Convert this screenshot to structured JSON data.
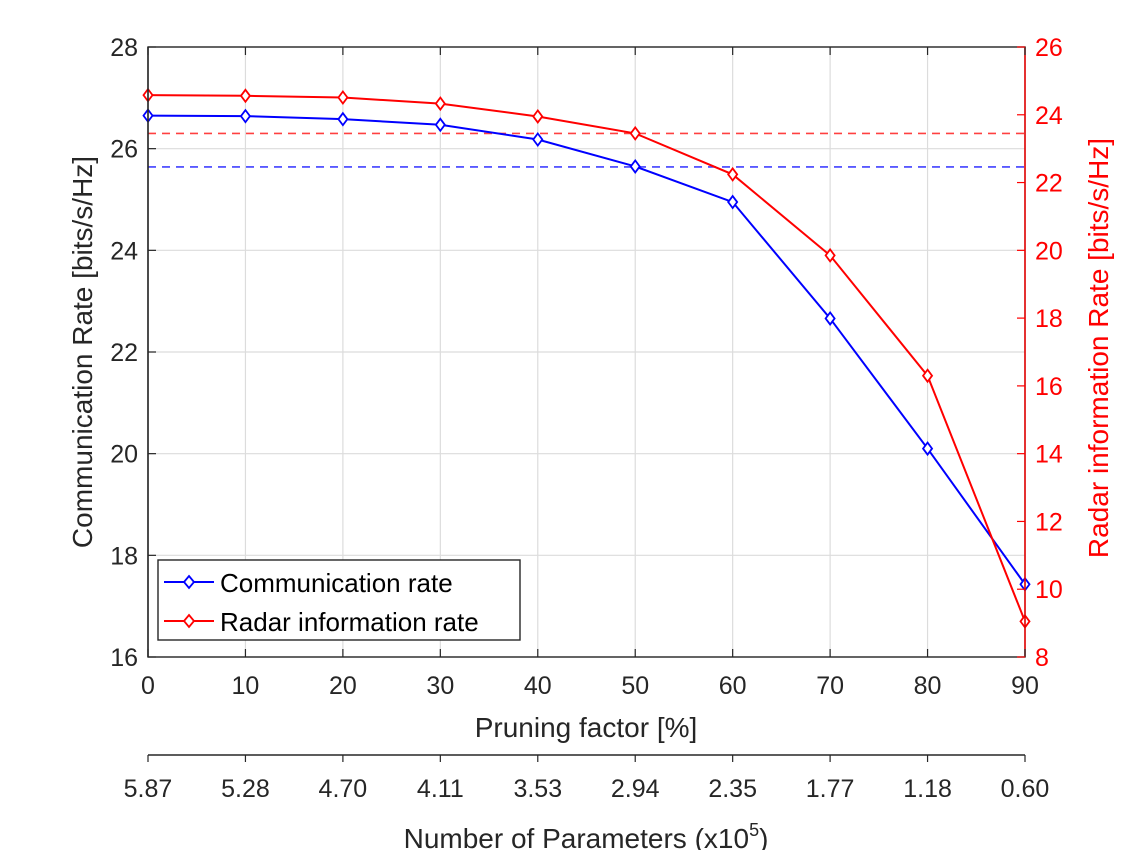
{
  "chart_data": {
    "type": "line",
    "x": [
      0,
      10,
      20,
      30,
      40,
      50,
      60,
      70,
      80,
      90
    ],
    "xlabel": "Pruning factor [%]",
    "xlim": [
      0,
      90
    ],
    "x_ticks": [
      "0",
      "10",
      "20",
      "30",
      "40",
      "50",
      "60",
      "70",
      "80",
      "90"
    ],
    "ylabel_left": "Communication Rate [bits/s/Hz]",
    "ylim_left": [
      16,
      28
    ],
    "y_ticks_left": [
      "16",
      "18",
      "20",
      "22",
      "24",
      "26",
      "28"
    ],
    "ylabel_right": "Radar information Rate [bits/s/Hz]",
    "ylim_right": [
      8,
      26
    ],
    "y_ticks_right": [
      "8",
      "10",
      "12",
      "14",
      "16",
      "18",
      "20",
      "22",
      "24",
      "26"
    ],
    "secondary_xlabel": "Number of Parameters (x10",
    "secondary_xlabel_exp": "5",
    "secondary_xlabel_end": ")",
    "secondary_x_ticks": [
      "5.87",
      "5.28",
      "4.70",
      "4.11",
      "3.53",
      "2.94",
      "2.35",
      "1.77",
      "1.18",
      "0.60"
    ],
    "grid": true,
    "legend_position": "bottom-left",
    "series": [
      {
        "name": "Communication rate",
        "axis": "left",
        "color": "#0000ff",
        "marker": "diamond",
        "values": [
          26.65,
          26.64,
          26.58,
          26.47,
          26.18,
          25.65,
          24.95,
          22.66,
          20.1,
          17.43
        ],
        "reference_line": 25.64
      },
      {
        "name": "Radar information rate",
        "axis": "right",
        "color": "#ff0000",
        "marker": "diamond",
        "values": [
          24.58,
          24.56,
          24.51,
          24.33,
          23.95,
          23.45,
          22.24,
          19.85,
          16.3,
          9.05
        ],
        "reference_line": 23.45
      }
    ]
  }
}
